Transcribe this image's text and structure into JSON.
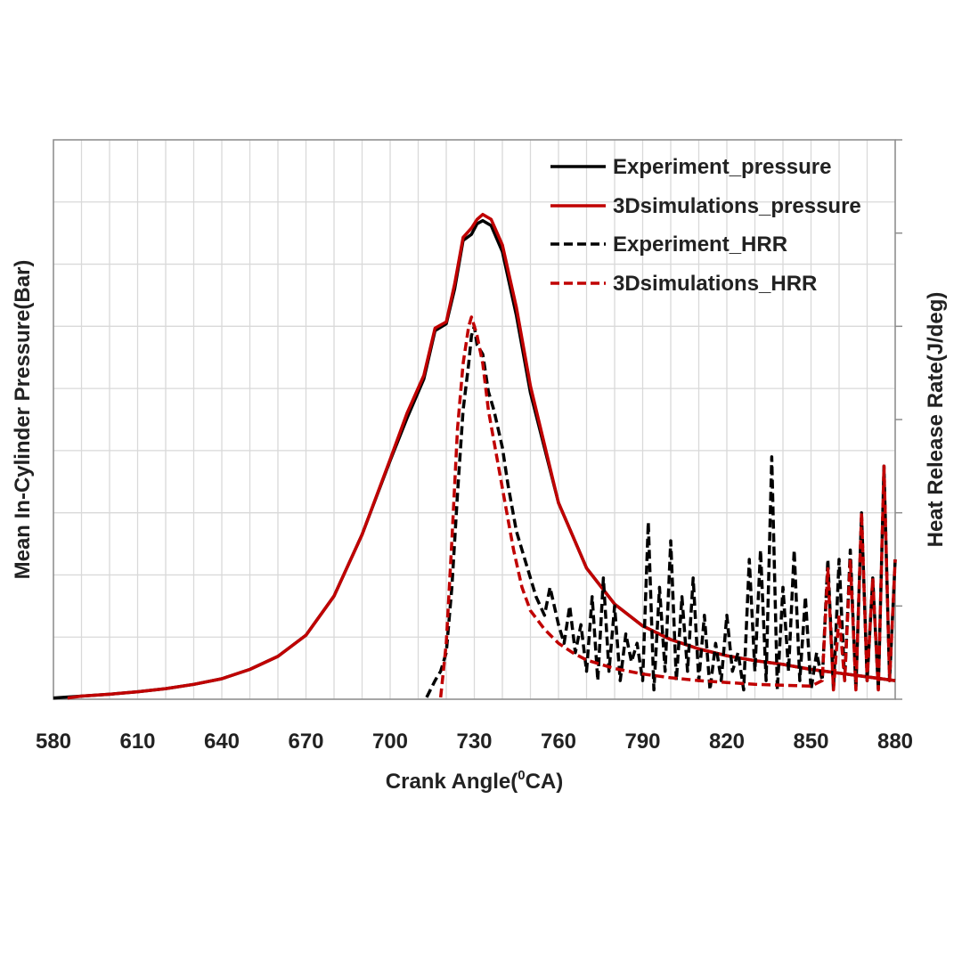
{
  "chart_data": {
    "type": "line",
    "title": "",
    "xlabel": "Crank Angle(",
    "xlabel_sup": "0",
    "xlabel_tail": "CA)",
    "ylabel_left": "Mean In-Cylinder Pressure(Bar)",
    "ylabel_right": "Heat Release Rate(J/deg)",
    "xlim": [
      580,
      880
    ],
    "x_ticks": [
      "580",
      "610",
      "640",
      "670",
      "700",
      "730",
      "760",
      "790",
      "820",
      "850",
      "880"
    ],
    "left_ylim": [
      0,
      9
    ],
    "right_ylim": [
      0,
      6
    ],
    "grid": true,
    "legend_position": "top-right",
    "colors": {
      "experiment": "#000000",
      "simulation": "#c00000",
      "grid": "#d9d9d9",
      "axis": "#8c8c8c"
    },
    "series": [
      {
        "name": "Experiment_pressure",
        "axis": "left",
        "style": "solid",
        "color": "#000000",
        "x": [
          580,
          590,
          600,
          610,
          620,
          630,
          640,
          650,
          660,
          670,
          680,
          690,
          700,
          706,
          712,
          716,
          720,
          723,
          726,
          729,
          731,
          733,
          736,
          740,
          745,
          750,
          760,
          770,
          780,
          790,
          800,
          810,
          820,
          830,
          840,
          850,
          860,
          870,
          880
        ],
        "y": [
          0.02,
          0.05,
          0.08,
          0.12,
          0.17,
          0.24,
          0.33,
          0.48,
          0.69,
          1.03,
          1.66,
          2.65,
          3.84,
          4.52,
          5.15,
          5.93,
          6.04,
          6.6,
          7.38,
          7.48,
          7.65,
          7.7,
          7.62,
          7.2,
          6.17,
          4.93,
          3.16,
          2.11,
          1.53,
          1.18,
          0.96,
          0.81,
          0.7,
          0.62,
          0.56,
          0.48,
          0.42,
          0.36,
          0.3
        ]
      },
      {
        "name": "3Dsimulations_pressure",
        "axis": "left",
        "style": "solid",
        "color": "#c00000",
        "x": [
          585,
          590,
          600,
          610,
          620,
          630,
          640,
          650,
          660,
          670,
          680,
          690,
          700,
          706,
          712,
          716,
          720,
          723,
          726,
          729,
          731,
          733,
          736,
          740,
          745,
          750,
          760,
          770,
          780,
          790,
          800,
          810,
          820,
          830,
          840,
          850,
          860,
          870,
          880
        ],
        "y": [
          0.02,
          0.05,
          0.08,
          0.12,
          0.17,
          0.24,
          0.33,
          0.48,
          0.69,
          1.03,
          1.66,
          2.65,
          3.86,
          4.6,
          5.21,
          5.97,
          6.07,
          6.68,
          7.43,
          7.58,
          7.72,
          7.8,
          7.72,
          7.31,
          6.3,
          5.04,
          3.16,
          2.11,
          1.53,
          1.18,
          0.96,
          0.81,
          0.7,
          0.62,
          0.56,
          0.48,
          0.42,
          0.36,
          0.3
        ]
      },
      {
        "name": "Experiment_HRR",
        "axis": "right",
        "style": "dashed",
        "color": "#000000",
        "x": [
          713,
          716,
          718,
          720,
          722,
          724,
          726,
          728,
          729,
          730,
          731,
          733,
          735,
          737,
          740,
          742,
          745,
          748,
          750,
          752,
          755,
          757,
          760,
          762,
          764,
          766,
          768,
          770,
          772,
          774,
          776,
          778,
          780,
          782,
          784,
          786,
          788,
          790,
          792,
          794,
          796,
          798,
          800,
          802,
          804,
          806,
          808,
          810,
          812,
          814,
          816,
          818,
          820,
          822,
          824,
          826,
          828,
          830,
          832,
          834,
          836,
          838,
          840,
          842,
          844,
          846,
          848,
          850,
          852,
          854,
          856,
          858,
          860,
          862,
          864,
          866,
          868,
          870,
          872,
          874,
          876,
          878,
          880
        ],
        "y": [
          0.02,
          0.2,
          0.3,
          0.5,
          1.2,
          2.2,
          3.1,
          3.6,
          3.9,
          4.0,
          3.8,
          3.7,
          3.3,
          3.1,
          2.7,
          2.3,
          1.8,
          1.5,
          1.3,
          1.1,
          0.9,
          1.2,
          0.8,
          0.6,
          1.0,
          0.5,
          0.8,
          0.3,
          1.1,
          0.2,
          1.3,
          0.3,
          1.0,
          0.2,
          0.7,
          0.4,
          0.6,
          0.2,
          1.9,
          0.1,
          1.2,
          0.3,
          1.7,
          0.2,
          1.1,
          0.3,
          1.3,
          0.2,
          0.9,
          0.1,
          0.6,
          0.2,
          0.9,
          0.3,
          0.5,
          0.1,
          1.5,
          0.3,
          1.6,
          0.2,
          2.6,
          0.1,
          1.2,
          0.3,
          1.6,
          0.2,
          1.1,
          0.1,
          0.5,
          0.2,
          1.5,
          0.1,
          1.5,
          0.2,
          1.6,
          0.1,
          2.0,
          0.2,
          1.3,
          0.1,
          2.5,
          0.2,
          1.5
        ]
      },
      {
        "name": "3Dsimulations_HRR",
        "axis": "right",
        "style": "dashed",
        "color": "#c00000",
        "x": [
          718,
          720,
          722,
          724,
          726,
          728,
          729,
          730,
          731,
          733,
          735,
          738,
          741,
          744,
          747,
          750,
          755,
          760,
          765,
          770,
          780,
          790,
          800,
          810,
          820,
          830,
          840,
          850,
          854,
          856,
          858,
          860,
          862,
          864,
          866,
          868,
          870,
          872,
          874,
          876,
          878,
          880
        ],
        "y": [
          0.02,
          0.6,
          1.7,
          2.9,
          3.6,
          4.0,
          4.1,
          4.0,
          3.9,
          3.6,
          3.1,
          2.6,
          2.1,
          1.6,
          1.2,
          0.95,
          0.75,
          0.6,
          0.5,
          0.42,
          0.33,
          0.27,
          0.23,
          0.2,
          0.18,
          0.16,
          0.15,
          0.14,
          0.2,
          1.4,
          0.1,
          0.9,
          0.2,
          1.5,
          0.1,
          2.0,
          0.2,
          1.3,
          0.1,
          2.5,
          0.2,
          1.5
        ]
      }
    ]
  }
}
